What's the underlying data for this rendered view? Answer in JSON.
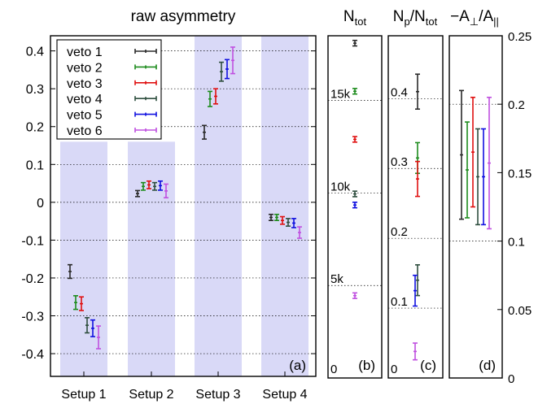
{
  "chart_data": [
    {
      "type": "scatter",
      "panel": "a",
      "title": "raw asymmetry",
      "panel_label": "(a)",
      "ylim": [
        -0.46,
        0.44
      ],
      "yticks": [
        -0.4,
        -0.3,
        -0.2,
        -0.1,
        0,
        0.1,
        0.2,
        0.3,
        0.4
      ],
      "ytick_labels": [
        "-0.4",
        "-0.3",
        "-0.2",
        "-0.1",
        "0",
        "0.1",
        "0.2",
        "0.3",
        "0.4"
      ],
      "grid": "dotted horizontal at ticks",
      "categories": [
        "Setup 1",
        "Setup 2",
        "Setup 3",
        "Setup 4"
      ],
      "series": [
        {
          "name": "veto 1",
          "color": "#2a2a2a",
          "values": [
            -0.183,
            0.023,
            0.185,
            -0.04
          ],
          "errors": [
            0.018,
            0.008,
            0.018,
            0.008
          ]
        },
        {
          "name": "veto 2",
          "color": "#1e8c1e",
          "values": [
            -0.265,
            0.042,
            0.273,
            -0.04
          ],
          "errors": [
            0.018,
            0.01,
            0.02,
            0.008
          ]
        },
        {
          "name": "veto 3",
          "color": "#e01010",
          "values": [
            -0.268,
            0.046,
            0.28,
            -0.048
          ],
          "errors": [
            0.018,
            0.01,
            0.02,
            0.01
          ]
        },
        {
          "name": "veto 4",
          "color": "#2f4f3f",
          "values": [
            -0.325,
            0.042,
            0.345,
            -0.053
          ],
          "errors": [
            0.02,
            0.01,
            0.025,
            0.01
          ]
        },
        {
          "name": "veto 5",
          "color": "#1010e0",
          "values": [
            -0.333,
            0.044,
            0.352,
            -0.055
          ],
          "errors": [
            0.022,
            0.012,
            0.025,
            0.012
          ]
        },
        {
          "name": "veto 6",
          "color": "#c050e0",
          "values": [
            -0.357,
            0.03,
            0.375,
            -0.08
          ],
          "errors": [
            0.03,
            0.018,
            0.035,
            0.015
          ]
        }
      ]
    },
    {
      "type": "scatter",
      "panel": "b",
      "title_main": "N",
      "title_sub": "tot",
      "panel_label": "(b)",
      "ylim": [
        0,
        18500
      ],
      "ytick_labels_inside": [
        {
          "value": 0,
          "label": "0"
        },
        {
          "value": 5000,
          "label": "5k"
        },
        {
          "value": 10000,
          "label": "10k"
        },
        {
          "value": 15000,
          "label": "15k"
        }
      ],
      "series": [
        {
          "name": "veto 1",
          "color": "#2a2a2a",
          "value": 18100,
          "error": 150
        },
        {
          "name": "veto 2",
          "color": "#1e8c1e",
          "value": 15500,
          "error": 150
        },
        {
          "name": "veto 3",
          "color": "#e01010",
          "value": 12900,
          "error": 150
        },
        {
          "name": "veto 4",
          "color": "#2f4f3f",
          "value": 9950,
          "error": 150
        },
        {
          "name": "veto 5",
          "color": "#1010e0",
          "value": 9350,
          "error": 150
        },
        {
          "name": "veto 6",
          "color": "#c050e0",
          "value": 4450,
          "error": 150
        }
      ]
    },
    {
      "type": "scatter",
      "panel": "c",
      "title_pre": "N",
      "title_pre_sub": "p",
      "title_post": "/N",
      "title_post_sub": "tot",
      "panel_label": "(c)",
      "ylim": [
        0,
        0.49
      ],
      "ytick_labels_inside": [
        {
          "value": 0,
          "label": "0"
        },
        {
          "value": 0.1,
          "label": "0.1"
        },
        {
          "value": 0.2,
          "label": "0.2"
        },
        {
          "value": 0.3,
          "label": "0.3"
        },
        {
          "value": 0.4,
          "label": "0.4"
        }
      ],
      "series": [
        {
          "name": "veto 1",
          "color": "#2a2a2a",
          "value": 0.41,
          "error": 0.025
        },
        {
          "name": "veto 2",
          "color": "#1e8c1e",
          "value": 0.315,
          "error": 0.022
        },
        {
          "name": "veto 3",
          "color": "#e01010",
          "value": 0.285,
          "error": 0.025
        },
        {
          "name": "veto 4",
          "color": "#2f4f3f",
          "value": 0.14,
          "error": 0.022
        },
        {
          "name": "veto 5",
          "color": "#1010e0",
          "value": 0.125,
          "error": 0.022
        },
        {
          "name": "veto 6",
          "color": "#c050e0",
          "value": 0.038,
          "error": 0.012
        }
      ]
    },
    {
      "type": "scatter",
      "panel": "d",
      "title_pre": "−A",
      "title_pre_sub": "⊥",
      "title_post": "/A",
      "title_post_sub": "||",
      "panel_label": "(d)",
      "ylim": [
        0,
        0.25
      ],
      "yticks": [
        0,
        0.05,
        0.1,
        0.15,
        0.2,
        0.25
      ],
      "ytick_labels": [
        "0",
        "0.05",
        "0.1",
        "0.15",
        "0.2",
        "0.25"
      ],
      "grid": "dotted horizontal at 0.1 and 0.2",
      "series": [
        {
          "name": "veto 1",
          "color": "#2a2a2a",
          "value": 0.163,
          "error": 0.047
        },
        {
          "name": "veto 2",
          "color": "#1e8c1e",
          "value": 0.152,
          "error": 0.035
        },
        {
          "name": "veto 3",
          "color": "#e01010",
          "value": 0.165,
          "error": 0.04
        },
        {
          "name": "veto 4",
          "color": "#2f4f3f",
          "value": 0.147,
          "error": 0.035
        },
        {
          "name": "veto 5",
          "color": "#1010e0",
          "value": 0.147,
          "error": 0.035
        },
        {
          "name": "veto 6",
          "color": "#c050e0",
          "value": 0.157,
          "error": 0.048
        }
      ]
    }
  ]
}
